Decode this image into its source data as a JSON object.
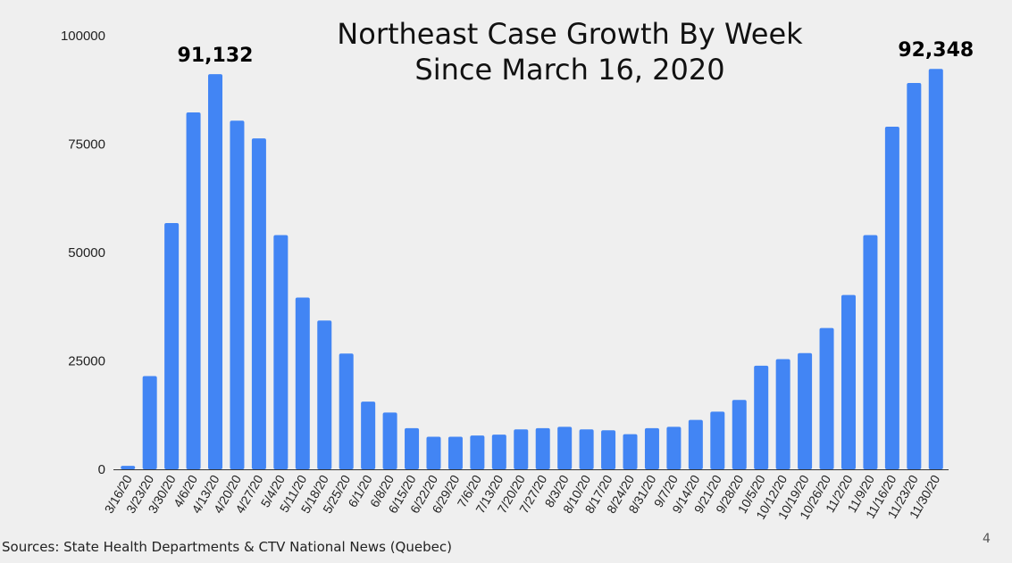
{
  "slide": {
    "source_text": "Sources: State Health Departments & CTV National News (Quebec)",
    "page_number": "4"
  },
  "chart_data": {
    "type": "bar",
    "title": [
      "Northeast Case Growth By Week",
      "Since March 16, 2020"
    ],
    "xlabel": "",
    "ylabel": "",
    "ylim": [
      0,
      100000
    ],
    "yticks": [
      0,
      25000,
      50000,
      75000,
      100000
    ],
    "bar_color": "#4285f4",
    "categories": [
      "3/16/20",
      "3/23/20",
      "3/30/20",
      "4/6/20",
      "4/13/20",
      "4/20/20",
      "4/27/20",
      "5/4/20",
      "5/11/20",
      "5/18/20",
      "5/25/20",
      "6/1/20",
      "6/8/20",
      "6/15/20",
      "6/22/20",
      "6/29/20",
      "7/6/20",
      "7/13/20",
      "7/20/20",
      "7/27/20",
      "8/3/20",
      "8/10/20",
      "8/17/20",
      "8/24/20",
      "8/31/20",
      "9/7/20",
      "9/14/20",
      "9/21/20",
      "9/28/20",
      "10/5/20",
      "10/12/20",
      "10/19/20",
      "10/26/20",
      "11/2/20",
      "11/9/20",
      "11/16/20",
      "11/23/20",
      "11/30/20"
    ],
    "values": [
      800,
      21500,
      56800,
      82300,
      91132,
      80400,
      76300,
      54000,
      39600,
      34300,
      26700,
      15600,
      13100,
      9500,
      7500,
      7500,
      7800,
      8000,
      9200,
      9500,
      9800,
      9200,
      9000,
      8100,
      9500,
      9800,
      11400,
      13300,
      16000,
      23900,
      25400,
      26800,
      32600,
      40200,
      54000,
      79000,
      89100,
      92348
    ],
    "annotations": [
      {
        "label": "91,132",
        "category": "4/13/20"
      },
      {
        "label": "92,348",
        "category": "11/30/20"
      }
    ]
  }
}
